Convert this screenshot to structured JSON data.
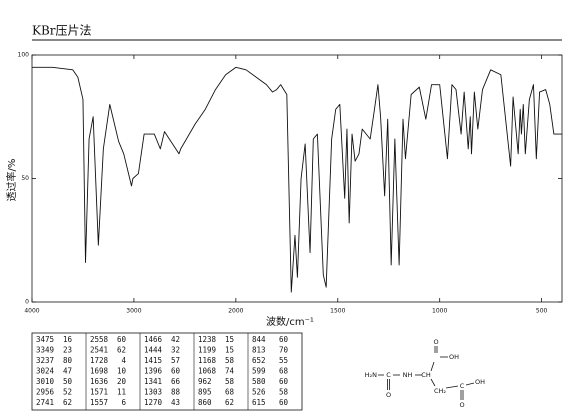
{
  "chart_data": {
    "type": "line",
    "title": "KBr压片法",
    "ylabel": "透过率/%",
    "xlabel": "波数/cm⁻¹",
    "xlim": [
      4000,
      400
    ],
    "x_scale_break": 2000,
    "xticks": [
      4000,
      3000,
      2000,
      1500,
      1000,
      500
    ],
    "ylim": [
      0,
      100
    ],
    "yticks": [
      0,
      50,
      100
    ],
    "color": "#111111",
    "x": [
      4000,
      3800,
      3600,
      3550,
      3500,
      3475,
      3440,
      3400,
      3349,
      3300,
      3237,
      3150,
      3100,
      3024,
      3010,
      2956,
      2900,
      2800,
      2741,
      2700,
      2558,
      2541,
      2400,
      2300,
      2200,
      2100,
      2000,
      1950,
      1900,
      1850,
      1820,
      1800,
      1780,
      1750,
      1728,
      1710,
      1698,
      1680,
      1660,
      1636,
      1620,
      1600,
      1571,
      1557,
      1530,
      1510,
      1490,
      1466,
      1455,
      1444,
      1430,
      1415,
      1396,
      1380,
      1341,
      1320,
      1303,
      1290,
      1270,
      1255,
      1238,
      1220,
      1199,
      1180,
      1168,
      1140,
      1100,
      1068,
      1040,
      1000,
      962,
      940,
      920,
      895,
      880,
      860,
      850,
      844,
      830,
      813,
      790,
      750,
      700,
      652,
      640,
      615,
      605,
      599,
      590,
      580,
      560,
      540,
      526,
      510,
      480,
      460,
      440,
      400
    ],
    "values": [
      95,
      95,
      94,
      91,
      82,
      16,
      66,
      75,
      23,
      62,
      80,
      65,
      60,
      47,
      50,
      52,
      68,
      68,
      62,
      69,
      60,
      62,
      72,
      78,
      86,
      92,
      95,
      94,
      91,
      88,
      85,
      86,
      88,
      84,
      4,
      27,
      10,
      50,
      64,
      20,
      66,
      68,
      11,
      6,
      66,
      78,
      80,
      42,
      70,
      32,
      68,
      57,
      60,
      70,
      66,
      78,
      88,
      75,
      43,
      74,
      15,
      66,
      15,
      74,
      58,
      84,
      87,
      74,
      88,
      88,
      58,
      88,
      86,
      68,
      85,
      62,
      75,
      60,
      85,
      70,
      86,
      94,
      92,
      55,
      83,
      60,
      78,
      68,
      80,
      60,
      82,
      88,
      58,
      85,
      86,
      80,
      68,
      68
    ]
  },
  "peak_table": {
    "rows": [
      [
        "3475",
        "16",
        "2558",
        "60",
        "1466",
        "42",
        "1238",
        "15",
        "844",
        "60"
      ],
      [
        "3349",
        "23",
        "2541",
        "62",
        "1444",
        "32",
        "1199",
        "15",
        "813",
        "70"
      ],
      [
        "3237",
        "80",
        "1728",
        "4",
        "1415",
        "57",
        "1168",
        "58",
        "652",
        "55"
      ],
      [
        "3024",
        "47",
        "1698",
        "10",
        "1396",
        "60",
        "1068",
        "74",
        "599",
        "68"
      ],
      [
        "3010",
        "50",
        "1636",
        "20",
        "1341",
        "66",
        "962",
        "58",
        "580",
        "60"
      ],
      [
        "2956",
        "52",
        "1571",
        "11",
        "1303",
        "88",
        "895",
        "68",
        "526",
        "58"
      ],
      [
        "2741",
        "62",
        "1557",
        "6",
        "1270",
        "43",
        "860",
        "62",
        "615",
        "60"
      ]
    ]
  },
  "structure": {
    "labels": [
      "O",
      "OH",
      "H₂N",
      "C",
      "NH",
      "CH",
      "O",
      "CH₂",
      "C",
      "OH",
      "O"
    ]
  }
}
